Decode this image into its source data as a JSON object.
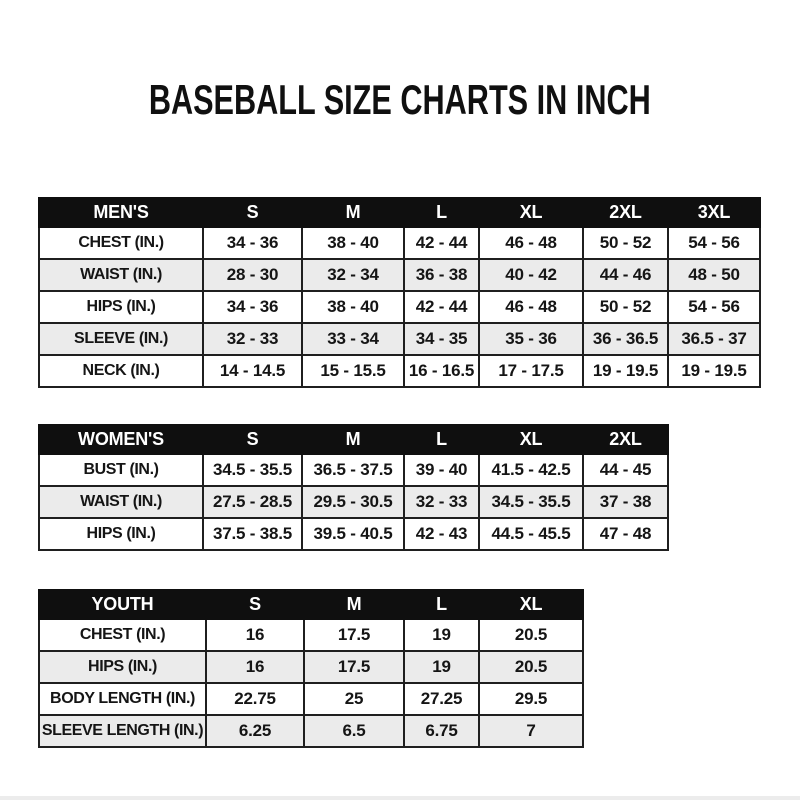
{
  "page": {
    "title": "BASEBALL SIZE CHARTS IN INCH"
  },
  "tables": [
    {
      "id": "mens",
      "header": [
        "MEN'S",
        "S",
        "M",
        "L",
        "XL",
        "2XL",
        "3XL"
      ],
      "rows": [
        {
          "label": "CHEST (IN.)",
          "values": [
            "34 - 36",
            "38 - 40",
            "42 - 44",
            "46 - 48",
            "50 - 52",
            "54 - 56"
          ]
        },
        {
          "label": "WAIST (IN.)",
          "values": [
            "28 - 30",
            "32 - 34",
            "36 - 38",
            "40 - 42",
            "44 - 46",
            "48 - 50"
          ]
        },
        {
          "label": "HIPS (IN.)",
          "values": [
            "34 - 36",
            "38 - 40",
            "42 - 44",
            "46 - 48",
            "50 - 52",
            "54 - 56"
          ]
        },
        {
          "label": "SLEEVE (IN.)",
          "values": [
            "32 - 33",
            "33 - 34",
            "34 - 35",
            "35 - 36",
            "36 - 36.5",
            "36.5 - 37"
          ]
        },
        {
          "label": "NECK (IN.)",
          "values": [
            "14 - 14.5",
            "15 - 15.5",
            "16 - 16.5",
            "17 - 17.5",
            "19 - 19.5",
            "19 - 19.5"
          ]
        }
      ]
    },
    {
      "id": "womens",
      "header": [
        "WOMEN'S",
        "S",
        "M",
        "L",
        "XL",
        "2XL"
      ],
      "rows": [
        {
          "label": "BUST (IN.)",
          "values": [
            "34.5 - 35.5",
            "36.5 - 37.5",
            "39 - 40",
            "41.5 - 42.5",
            "44 - 45"
          ]
        },
        {
          "label": "WAIST (IN.)",
          "values": [
            "27.5 - 28.5",
            "29.5 - 30.5",
            "32 - 33",
            "34.5 - 35.5",
            "37 - 38"
          ]
        },
        {
          "label": "HIPS (IN.)",
          "values": [
            "37.5 - 38.5",
            "39.5 - 40.5",
            "42 - 43",
            "44.5 - 45.5",
            "47 - 48"
          ]
        }
      ]
    },
    {
      "id": "youth",
      "header": [
        "YOUTH",
        "S",
        "M",
        "L",
        "XL"
      ],
      "rows": [
        {
          "label": "CHEST (IN.)",
          "values": [
            "16",
            "17.5",
            "19",
            "20.5"
          ]
        },
        {
          "label": "HIPS (IN.)",
          "values": [
            "16",
            "17.5",
            "19",
            "20.5"
          ]
        },
        {
          "label": "BODY LENGTH (IN.)",
          "values": [
            "22.75",
            "25",
            "27.25",
            "29.5"
          ]
        },
        {
          "label": "SLEEVE LENGTH (IN.)",
          "values": [
            "6.25",
            "6.5",
            "6.75",
            "7"
          ]
        }
      ]
    }
  ],
  "colors": {
    "header_bg": "#0f0f0f",
    "header_text": "#ffffff",
    "row_alt_bg": "#ebebeb",
    "border": "#1f1f1f",
    "page_bg": "#ffffff"
  }
}
